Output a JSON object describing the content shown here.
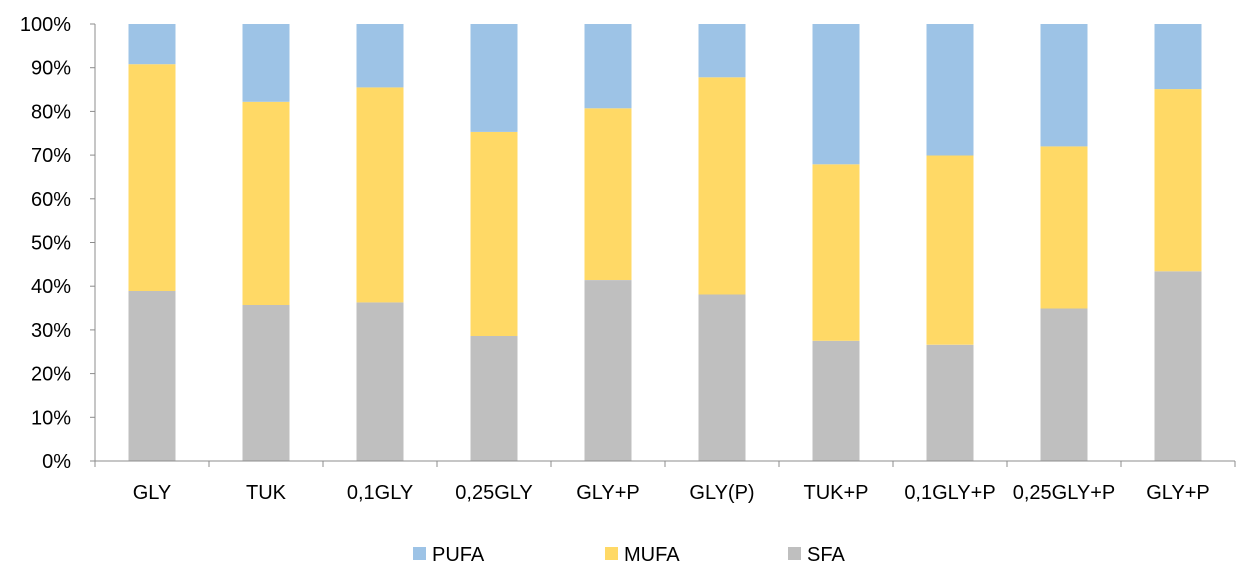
{
  "chart_data": {
    "type": "bar",
    "stacked": true,
    "normalized": true,
    "categories": [
      "GLY",
      "TUK",
      "0,1GLY",
      "0,25GLY",
      "GLY+P",
      "GLY(P)",
      "TUK+P",
      "0,1GLY+P",
      "0,25GLY+P",
      "GLY+P"
    ],
    "series": [
      {
        "name": "SFA",
        "color": "#bfbfbf",
        "values": [
          38.9,
          35.7,
          36.3,
          28.6,
          41.4,
          38.1,
          27.5,
          26.6,
          34.9,
          43.4
        ]
      },
      {
        "name": "MUFA",
        "color": "#ffd966",
        "values": [
          51.9,
          46.5,
          49.2,
          46.7,
          39.3,
          49.7,
          40.4,
          43.3,
          37.1,
          41.7
        ]
      },
      {
        "name": "PUFA",
        "color": "#9dc3e6",
        "values": [
          9.2,
          17.8,
          14.5,
          24.7,
          19.3,
          12.2,
          32.1,
          30.1,
          28.0,
          14.9
        ]
      }
    ],
    "ylim": [
      0,
      100
    ],
    "yticks": [
      "0%",
      "10%",
      "20%",
      "30%",
      "40%",
      "50%",
      "60%",
      "70%",
      "80%",
      "90%",
      "100%"
    ],
    "title": "",
    "xlabel": "",
    "ylabel": "",
    "grid": false,
    "legend": {
      "position": "bottom",
      "entries": [
        "PUFA",
        "MUFA",
        "SFA"
      ]
    }
  }
}
